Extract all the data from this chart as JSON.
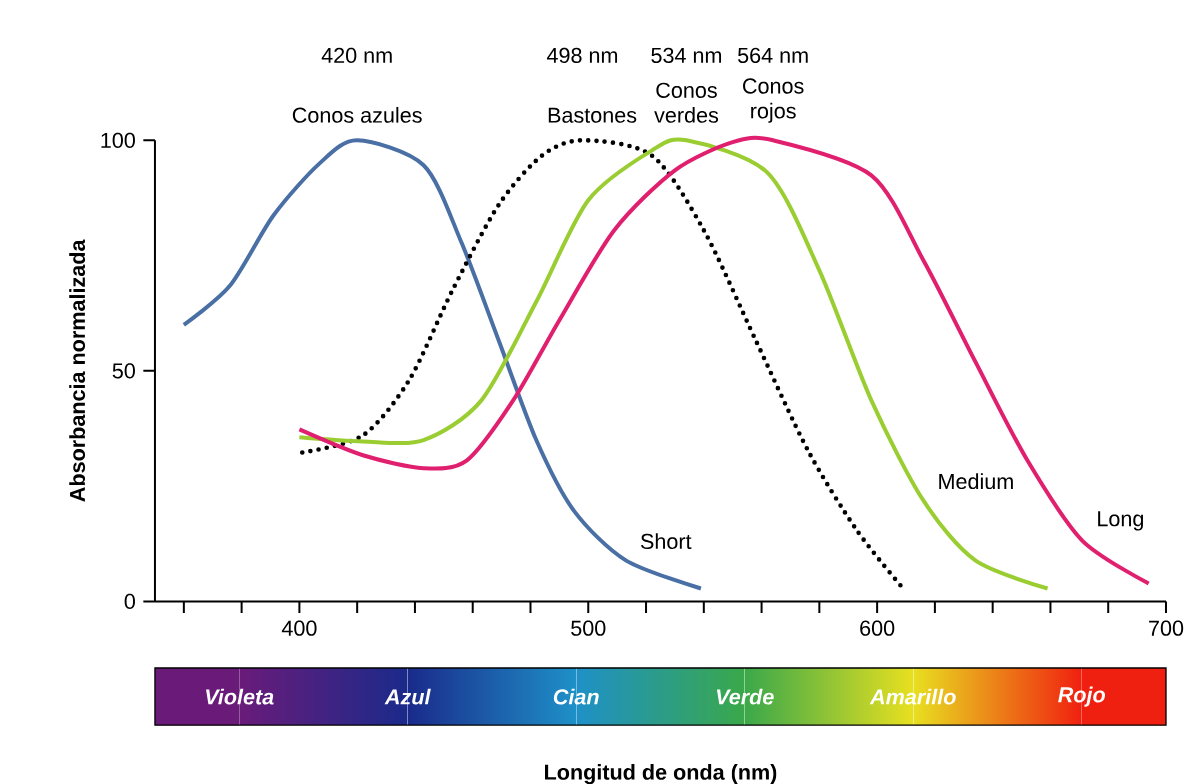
{
  "chart_data": [
    {
      "type": "line",
      "xlabel": "Longitud de onda (nm)",
      "ylabel": "Absorbancia normalizada",
      "xlim": [
        350,
        700
      ],
      "ylim": [
        0,
        100
      ],
      "xticks": [
        {
          "value": 360,
          "label": null
        },
        {
          "value": 380,
          "label": null
        },
        400,
        {
          "value": 420,
          "label": null
        },
        {
          "value": 440,
          "label": null
        },
        {
          "value": 460,
          "label": null
        },
        {
          "value": 480,
          "label": null
        },
        500,
        {
          "value": 520,
          "label": null
        },
        {
          "value": 540,
          "label": null
        },
        {
          "value": 560,
          "label": null
        },
        {
          "value": 580,
          "label": null
        },
        600,
        {
          "value": 620,
          "label": null
        },
        {
          "value": 640,
          "label": null
        },
        {
          "value": 660,
          "label": null
        },
        {
          "value": 680,
          "label": null
        },
        700
      ],
      "yticks": [
        0,
        50,
        100
      ],
      "marker": "none",
      "line_style": "solid",
      "grid": false,
      "series": [
        {
          "name": "Conos azules",
          "color": "#4a6fa5",
          "x": [
            360,
            376,
            391,
            407,
            420,
            443,
            456,
            469,
            482,
            495,
            513,
            539
          ],
          "values": [
            60,
            68.5,
            83.7,
            95,
            100,
            94.6,
            78,
            56.6,
            35,
            19.7,
            8.9,
            2.8
          ]
        },
        {
          "name": "Bastones",
          "color": "#000000",
          "line_style": "dotted",
          "x": [
            401,
            422,
            438,
            453,
            469,
            484,
            498,
            522,
            540,
            558,
            576,
            593,
            609
          ],
          "values": [
            32.3,
            36,
            48,
            67.5,
            86,
            96.7,
            100,
            96.7,
            80.5,
            56.6,
            32.8,
            15.4,
            2.8
          ]
        },
        {
          "name": "Conos verdes",
          "color": "#9acd32",
          "x": [
            400,
            422,
            443,
            463,
            482,
            500,
            522,
            534,
            562,
            580,
            598,
            616,
            634,
            659
          ],
          "values": [
            35.6,
            34.7,
            35,
            43.6,
            65,
            87,
            97.8,
            100,
            93,
            71.8,
            43.6,
            21.9,
            8.9,
            2.8
          ]
        },
        {
          "name": "Conos rojos",
          "color": "#e0206e",
          "x": [
            400,
            422,
            443,
            458,
            474,
            490,
            509,
            530,
            550,
            564,
            598,
            616,
            634,
            652,
            671,
            694
          ],
          "values": [
            37.3,
            31.7,
            28.9,
            30.6,
            43.6,
            61,
            80.5,
            93.5,
            99.6,
            100,
            92.4,
            74,
            52,
            30.6,
            13.2,
            3.9
          ]
        }
      ],
      "annotations": [
        "420 nm",
        "498 nm",
        "534 nm",
        "564 nm",
        {
          "text": "Short",
          "x": 513,
          "y": 9
        },
        {
          "text": "Medium",
          "x": 616,
          "y": 22
        },
        {
          "text": "Long",
          "x": 671,
          "y": 13
        }
      ]
    },
    {
      "type": "other",
      "categories": [
        "Violeta",
        "Azul",
        "Cian",
        "Verde",
        "Amarillo",
        "Rojo"
      ],
      "colors": [
        "#6a1b7a",
        "#1a2a8a",
        "#1e90c8",
        "#3aa84a",
        "#e8e020",
        "#f02010"
      ]
    }
  ]
}
